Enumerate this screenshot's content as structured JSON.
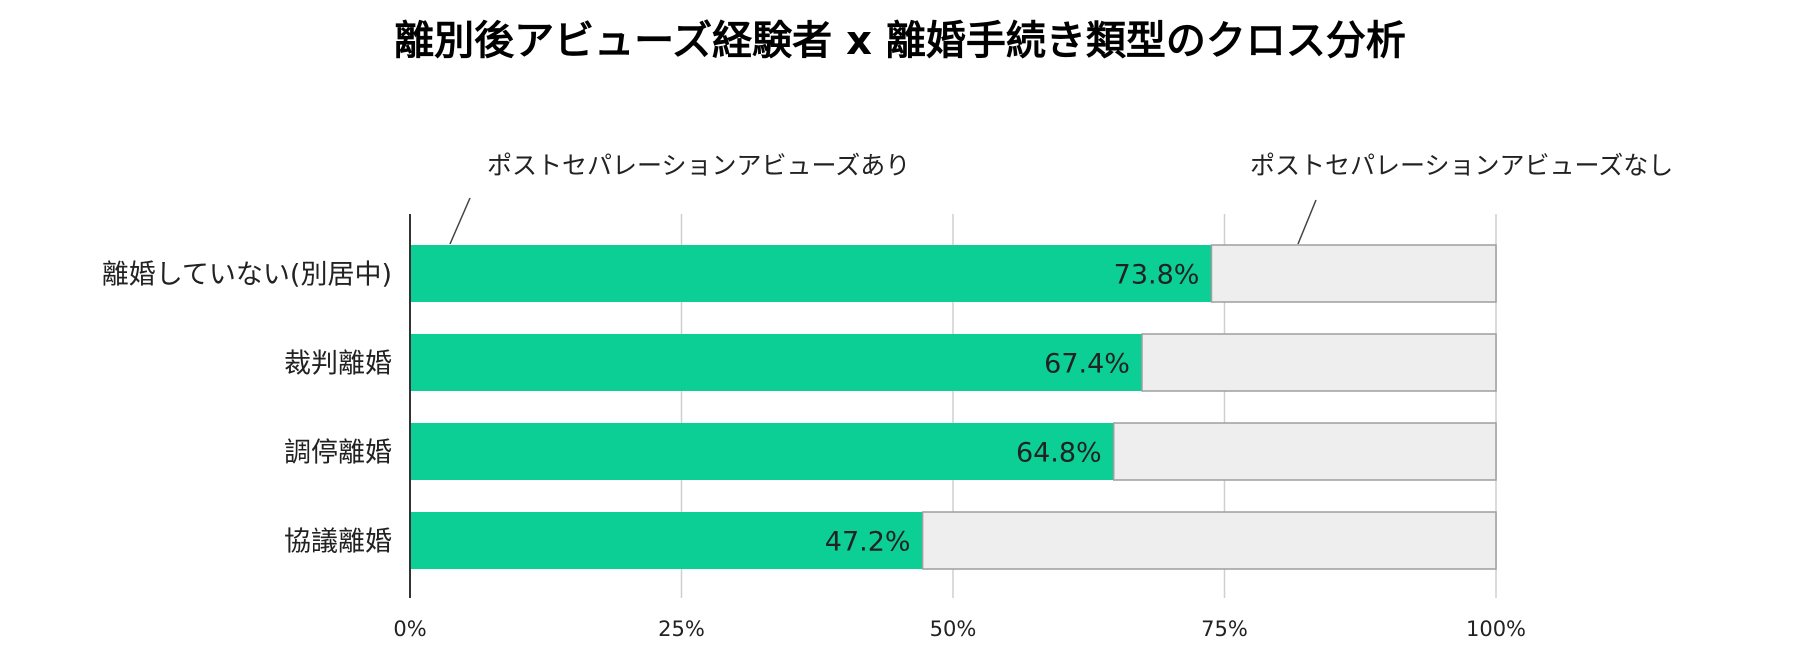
{
  "chart_data": {
    "type": "bar",
    "orientation": "horizontal",
    "stacked": true,
    "title": "離別後アビューズ経験者 x 離婚手続き類型のクロス分析",
    "categories": [
      "離婚していない(別居中)",
      "裁判離婚",
      "調停離婚",
      "協議離婚"
    ],
    "series": [
      {
        "name": "ポストセパレーションアビューズあり",
        "values": [
          73.8,
          67.4,
          64.8,
          47.2
        ],
        "labels": [
          "73.8%",
          "67.4%",
          "64.8%",
          "47.2%"
        ],
        "color": "#0ccf96"
      },
      {
        "name": "ポストセパレーションアビューズなし",
        "values": [
          26.2,
          32.6,
          35.2,
          52.8
        ],
        "color": "#eeeeee"
      }
    ],
    "x_ticks": [
      "0%",
      "25%",
      "50%",
      "75%",
      "100%"
    ],
    "xlim": [
      0,
      100
    ],
    "grid": true,
    "legend_position": "top, callout labels"
  }
}
